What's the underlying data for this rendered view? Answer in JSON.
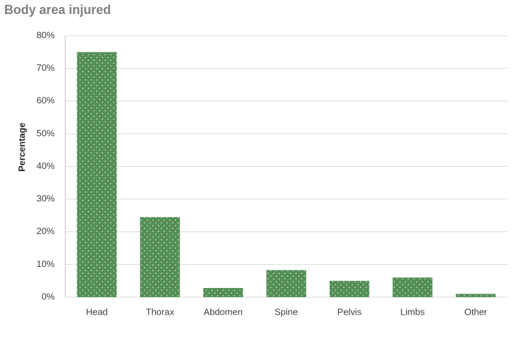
{
  "chart_data": {
    "type": "bar",
    "title": "Body area injured",
    "y_label": "Percentage",
    "categories": [
      "Head",
      "Thorax",
      "Abdomen",
      "Spine",
      "Pelvis",
      "Limbs",
      "Other"
    ],
    "values": [
      75,
      24.5,
      2.8,
      8.3,
      5,
      6,
      1
    ],
    "color": "#548f55",
    "ylim": [
      0,
      80
    ],
    "yticks": [
      {
        "value": 0,
        "label": "0%"
      },
      {
        "value": 10,
        "label": "10%"
      },
      {
        "value": 20,
        "label": "20%"
      },
      {
        "value": 30,
        "label": "30%"
      },
      {
        "value": 40,
        "label": "40%"
      },
      {
        "value": 50,
        "label": "50%"
      },
      {
        "value": 60,
        "label": "60%"
      },
      {
        "value": 70,
        "label": "70%"
      },
      {
        "value": 80,
        "label": "80%"
      }
    ],
    "grid": true
  }
}
